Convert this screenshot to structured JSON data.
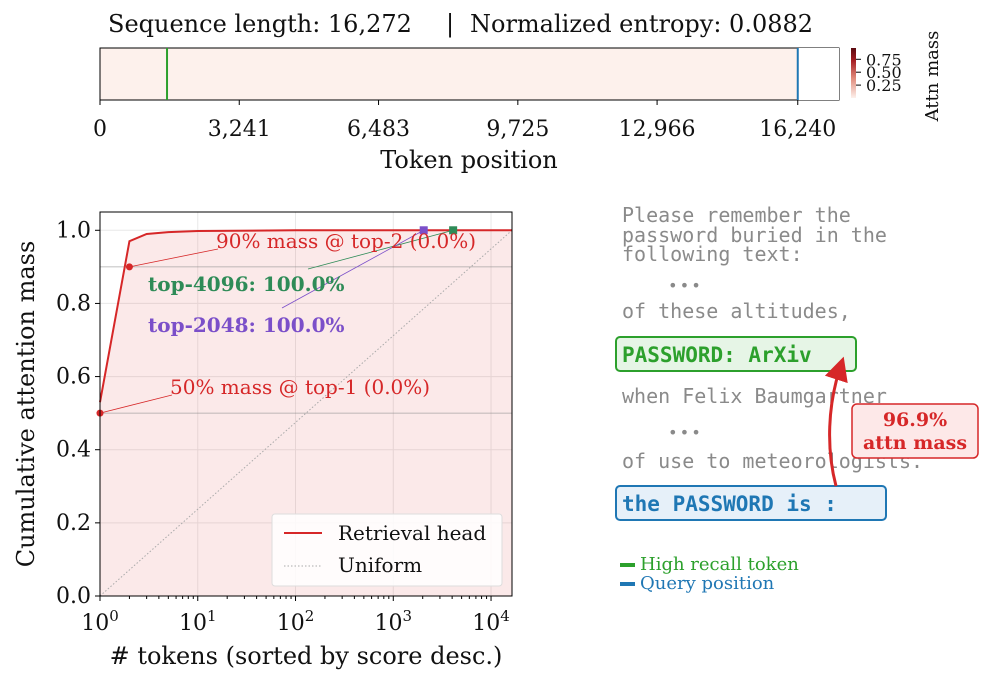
{
  "header": {
    "seq_label": "Sequence length: 16,272",
    "separator": "|",
    "entropy_label": "Normalized entropy: 0.0882"
  },
  "strip": {
    "xlabel": "Token position",
    "xticks": [
      "0",
      "3,241",
      "6,483",
      "9,725",
      "12,966",
      "16,240"
    ],
    "xtick_values": [
      0,
      3241,
      6483,
      9725,
      12966,
      16240
    ],
    "xlim": [
      0,
      17200
    ],
    "markers": [
      {
        "position": 1560,
        "color": "#2ca02c"
      },
      {
        "position": 16240,
        "color": "#1f77b4"
      }
    ],
    "fill_color": "#fdf1ec",
    "colorbar": {
      "label": "Attn mass",
      "ticks": [
        "0.75",
        "0.50",
        "0.25"
      ],
      "tick_values": [
        0.75,
        0.5,
        0.25
      ],
      "range": [
        0,
        0.969
      ]
    }
  },
  "chart_data": {
    "type": "line",
    "xlabel": "# tokens (sorted by score desc.)",
    "ylabel": "Cumulative attention mass",
    "xscale": "log",
    "xlim": [
      1,
      16384
    ],
    "ylim": [
      0,
      1.05
    ],
    "xticks": [
      {
        "base": "10",
        "exp": "0",
        "value": 1
      },
      {
        "base": "10",
        "exp": "1",
        "value": 10
      },
      {
        "base": "10",
        "exp": "2",
        "value": 100
      },
      {
        "base": "10",
        "exp": "3",
        "value": 1000
      },
      {
        "base": "10",
        "exp": "4",
        "value": 10000
      }
    ],
    "yticks": [
      "0.0",
      "0.2",
      "0.4",
      "0.6",
      "0.8",
      "1.0"
    ],
    "ytick_values": [
      0,
      0.2,
      0.4,
      0.6,
      0.8,
      1.0
    ],
    "grid": true,
    "series": [
      {
        "name": "Retrieval head",
        "color": "#d62728",
        "x": [
          1,
          2,
          3,
          5,
          10,
          100,
          1000,
          16384
        ],
        "y": [
          0.53,
          0.97,
          0.99,
          0.995,
          0.998,
          1.0,
          1.0,
          1.0
        ]
      },
      {
        "name": "Uniform",
        "color": "#aaaaaa",
        "x": [
          1,
          16384
        ],
        "y": [
          0.0,
          1.0
        ]
      }
    ],
    "threshold_lines": [
      {
        "y": 0.9,
        "color": "#888888"
      },
      {
        "y": 0.5,
        "color": "#888888"
      }
    ],
    "points": [
      {
        "x": 1,
        "y": 0.5,
        "color": "#d62728"
      },
      {
        "x": 2,
        "y": 0.9,
        "color": "#d62728"
      },
      {
        "x": 2048,
        "y": 1.0,
        "color": "#7b4fc9"
      },
      {
        "x": 4096,
        "y": 1.0,
        "color": "#2e8b57"
      }
    ],
    "annotations": [
      {
        "text": "90% mass @ top-2 (0.0%)",
        "color": "#d62728",
        "bold": false
      },
      {
        "text": "top-4096: 100.0%",
        "color": "#2e8b57",
        "bold": true
      },
      {
        "text": "top-2048: 100.0%",
        "color": "#7b4fc9",
        "bold": true
      },
      {
        "text": "50% mass @ top-1 (0.0%)",
        "color": "#d62728",
        "bold": false
      }
    ],
    "legend_position": "lower-right"
  },
  "prompt": {
    "lines": [
      "Please remember the",
      "password buried in the",
      "following text:",
      "•••",
      "of these altitudes,",
      "when Felix Baumgartner",
      "•••",
      "of use to meteorologists."
    ],
    "password_box": "PASSWORD: ArXiv",
    "query_box": "the PASSWORD is :",
    "attn_value": "96.9%",
    "attn_label": "attn mass",
    "legend": {
      "high_recall": "High recall token",
      "query": "Query position"
    },
    "colors": {
      "green": "#2ca02c",
      "green_fill": "#e6f5e6",
      "blue": "#1f77b4",
      "blue_fill": "#e6f0f9",
      "red": "#d62728",
      "red_fill": "#fde8e8",
      "gray_text": "#8a8a8a"
    }
  }
}
